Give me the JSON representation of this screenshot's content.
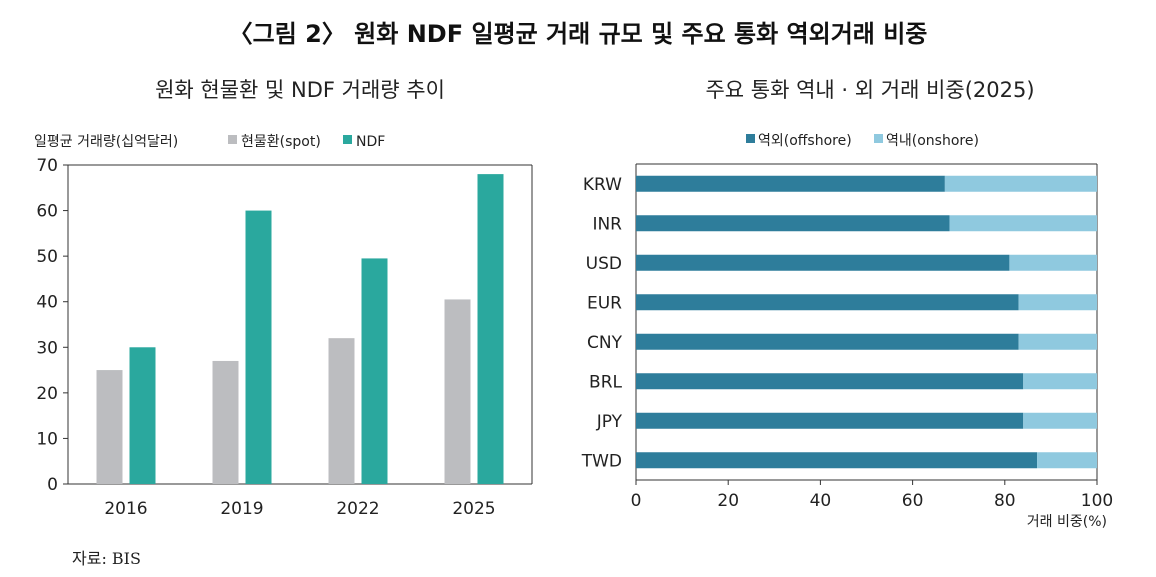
{
  "figure_title": "〈그림 2〉 원화 NDF 일평균 거래 규모 및 주요 통화 역외거래 비중",
  "source": "자료: BIS",
  "colors": {
    "spot": "#BCBDC0",
    "ndf": "#2AA89E",
    "offshore": "#2E7D9B",
    "onshore": "#8FC9DF",
    "axis": "#333333"
  },
  "chart_data": [
    {
      "type": "bar",
      "title": "원화 현물환 및 NDF 거래량 추이",
      "ylabel": "일평균 거래량(십억달러)",
      "categories": [
        "2016",
        "2019",
        "2022",
        "2025"
      ],
      "series": [
        {
          "name": "현물환(spot)",
          "values": [
            25,
            27,
            32,
            40.5
          ]
        },
        {
          "name": "NDF",
          "values": [
            30,
            60,
            49.5,
            68
          ]
        }
      ],
      "ylim": [
        0,
        70
      ],
      "yticks": [
        0,
        10,
        20,
        30,
        40,
        50,
        60,
        70
      ],
      "legend_position": "top-left",
      "grid": false
    },
    {
      "type": "bar",
      "orientation": "horizontal",
      "stacked": true,
      "title": "주요 통화 역내 · 외 거래 비중(2025)",
      "xlabel": "거래 비중(%)",
      "categories": [
        "KRW",
        "INR",
        "USD",
        "EUR",
        "CNY",
        "BRL",
        "JPY",
        "TWD"
      ],
      "series": [
        {
          "name": "역외(offshore)",
          "values": [
            67,
            68,
            81,
            83,
            83,
            84,
            84,
            87
          ]
        },
        {
          "name": "역내(onshore)",
          "values": [
            33,
            32,
            19,
            17,
            17,
            16,
            16,
            13
          ]
        }
      ],
      "xlim": [
        0,
        100
      ],
      "xticks": [
        0,
        20,
        40,
        60,
        80,
        100
      ],
      "legend_position": "top-center",
      "grid": false
    }
  ]
}
